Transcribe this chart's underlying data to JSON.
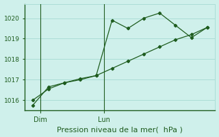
{
  "background_color": "#cff0eb",
  "grid_color": "#aaddd6",
  "line_color": "#1e5c1e",
  "xlabel": "Pression niveau de la mer(  hPa )",
  "xlabel_fontsize": 8,
  "ylim": [
    1015.5,
    1020.7
  ],
  "yticks": [
    1016,
    1017,
    1018,
    1019,
    1020
  ],
  "xlim": [
    -0.5,
    11.5
  ],
  "dim_x": 0.5,
  "lun_x": 4.5,
  "dim_label": "Dim",
  "lun_label": "Lun",
  "noisy_x": [
    0,
    1,
    2,
    3,
    4,
    5,
    6,
    7,
    8,
    9,
    10,
    11
  ],
  "noisy_y": [
    1015.75,
    1016.65,
    1016.85,
    1017.05,
    1017.2,
    1019.9,
    1019.5,
    1020.0,
    1020.25,
    1019.65,
    1019.05,
    1019.55
  ],
  "smooth_x": [
    0,
    1,
    2,
    3,
    4,
    5,
    6,
    7,
    8,
    9,
    10,
    11
  ],
  "smooth_y": [
    1016.0,
    1016.55,
    1016.85,
    1017.0,
    1017.2,
    1017.55,
    1017.9,
    1018.25,
    1018.6,
    1018.95,
    1019.2,
    1019.55
  ]
}
